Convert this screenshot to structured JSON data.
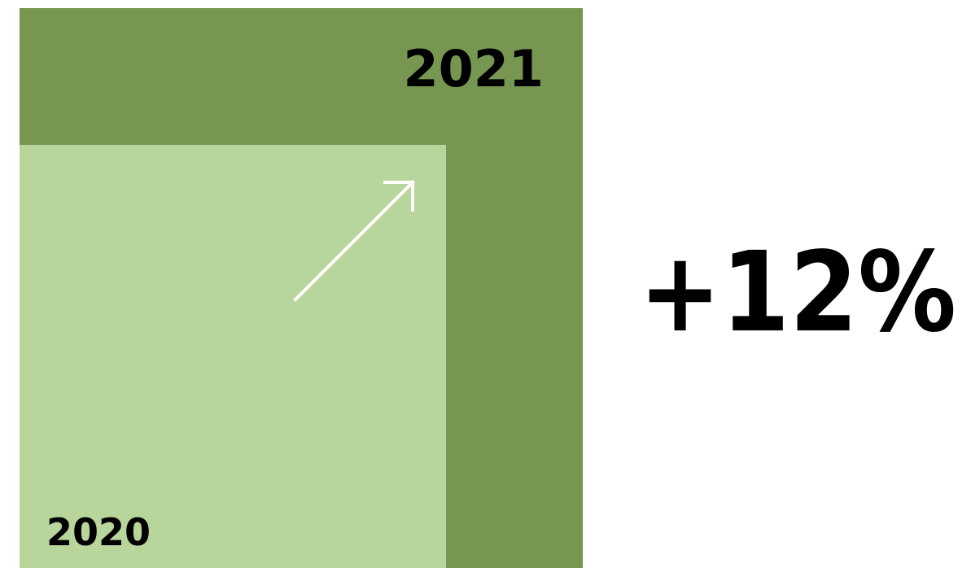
{
  "colors": {
    "year_2021": "#779651",
    "year_2020": "#b8d69b",
    "arrow": "#ffffff",
    "text": "#000000",
    "background": "#ffffff"
  },
  "chart_data": {
    "type": "area",
    "categories": [
      "2020",
      "2021"
    ],
    "values": [
      100,
      112
    ],
    "change_label": "+12%",
    "arrow_icon": "arrow-up-right-icon"
  }
}
